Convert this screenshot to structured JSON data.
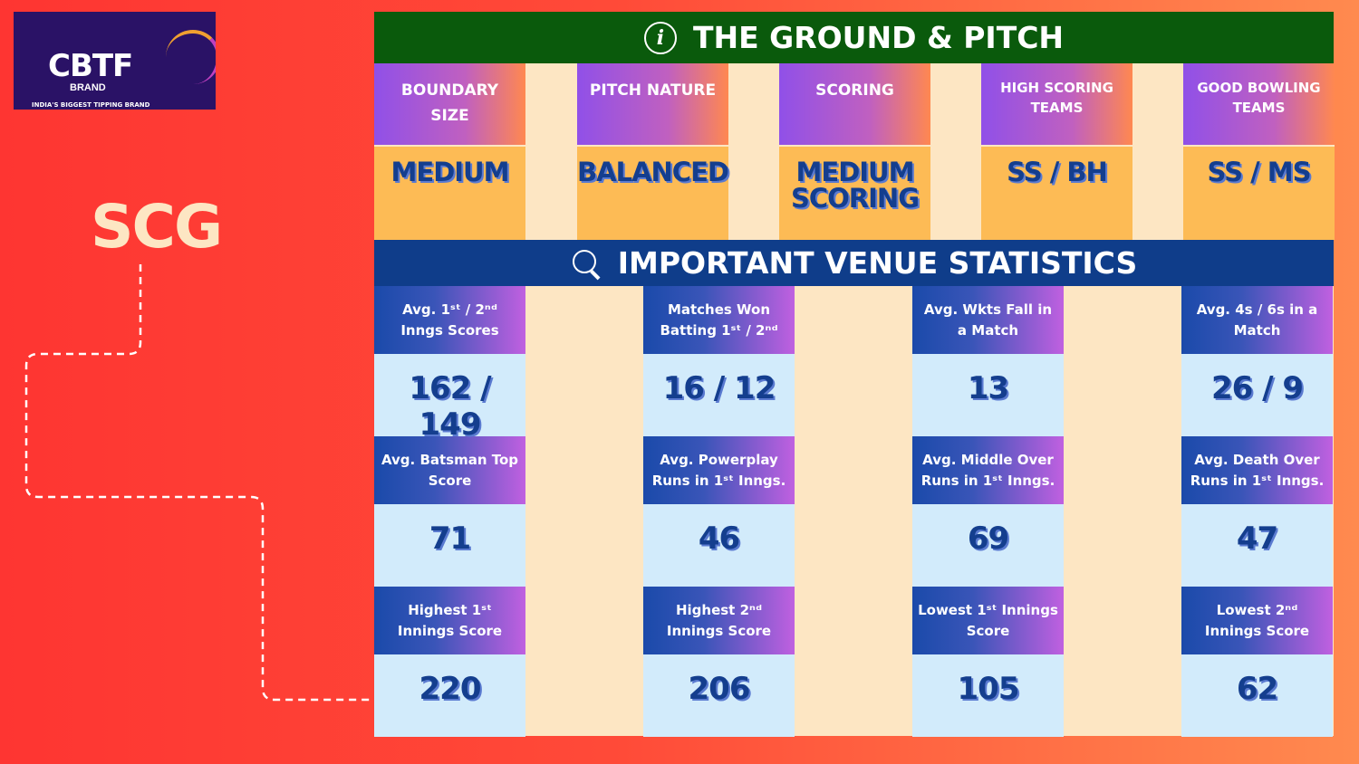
{
  "logo": {
    "name": "CBTF",
    "sub": "BRAND",
    "tagline": "INDIA'S BIGGEST TIPPING BRAND"
  },
  "venue": "SCG",
  "ground": {
    "title": "THE GROUND & PITCH",
    "icon": "info-icon",
    "items": [
      {
        "label": "BOUNDARY SIZE",
        "value": "MEDIUM"
      },
      {
        "label": "PITCH NATURE",
        "value": "BALANCED"
      },
      {
        "label": "SCORING",
        "value": "MEDIUM SCORING"
      },
      {
        "label": "HIGH SCORING TEAMS",
        "value": "SS / BH"
      },
      {
        "label": "GOOD BOWLING TEAMS",
        "value": "SS / MS"
      }
    ]
  },
  "stats": {
    "title": "IMPORTANT VENUE STATISTICS",
    "icon": "magnifier-chart-icon",
    "columns": [
      [
        {
          "label": "Avg. 1ˢᵗ / 2ⁿᵈ Inngs Scores",
          "value": "162 / 149"
        },
        {
          "label": "Avg. Batsman Top Score",
          "value": "71"
        },
        {
          "label": "Highest 1ˢᵗ Innings Score",
          "value": "220"
        }
      ],
      [
        {
          "label": "Matches Won Batting 1ˢᵗ / 2ⁿᵈ",
          "value": "16 / 12"
        },
        {
          "label": "Avg. Powerplay Runs in 1ˢᵗ Inngs.",
          "value": "46"
        },
        {
          "label": "Highest 2ⁿᵈ Innings Score",
          "value": "206"
        }
      ],
      [
        {
          "label": "Avg. Wkts Fall in a Match",
          "value": "13"
        },
        {
          "label": "Avg. Middle Over Runs in 1ˢᵗ Inngs.",
          "value": "69"
        },
        {
          "label": "Lowest 1ˢᵗ Innings Score",
          "value": "105"
        }
      ],
      [
        {
          "label": "Avg. 4s / 6s in a Match",
          "value": "26 / 9"
        },
        {
          "label": "Avg. Death Over Runs in 1ˢᵗ Inngs.",
          "value": "47"
        },
        {
          "label": "Lowest 2ⁿᵈ Innings Score",
          "value": "62"
        }
      ]
    ]
  },
  "colors": {
    "green": "#0a5a0c",
    "navy": "#0f3d8a",
    "orange": "#fdbb55",
    "cream": "#fde6c3",
    "lightblue": "#d2ebfb"
  }
}
